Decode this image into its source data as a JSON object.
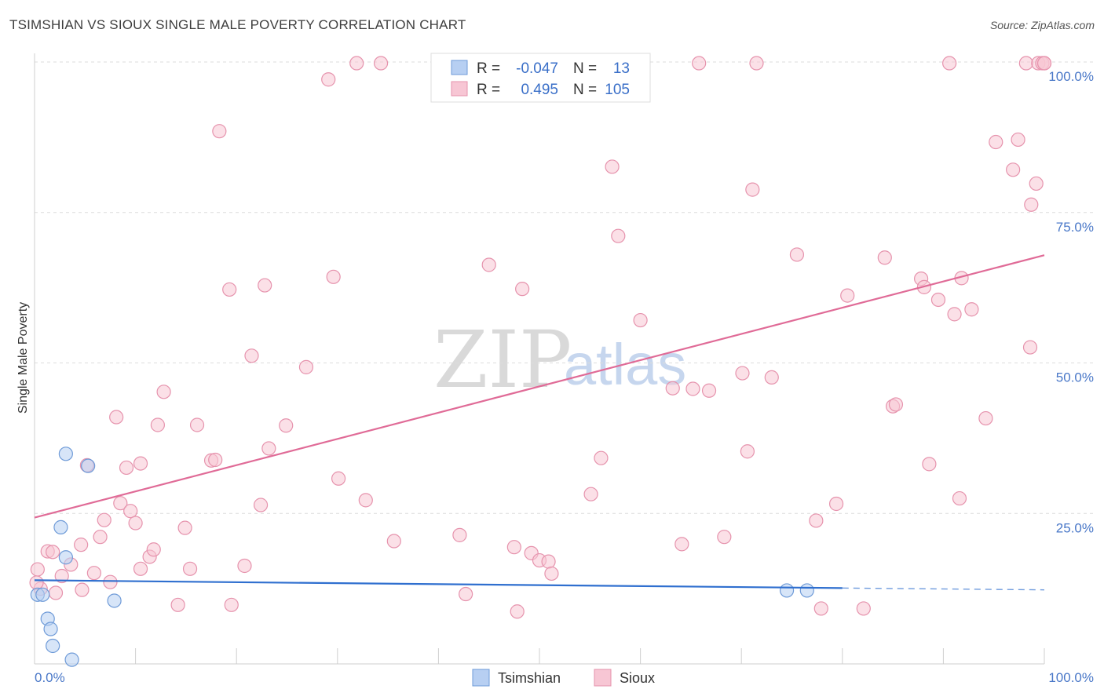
{
  "title": "TSIMSHIAN VS SIOUX SINGLE MALE POVERTY CORRELATION CHART",
  "source": "Source: ZipAtlas.com",
  "colors": {
    "tsimshian_fill": "#b7cff2",
    "tsimshian_stroke": "#6f9bd8",
    "tsimshian_line": "#2f6fcf",
    "sioux_fill": "#f7c6d4",
    "sioux_stroke": "#e693ad",
    "sioux_line": "#e06b97",
    "grid": "#dcdcdc",
    "tick_text": "#4a78c8"
  },
  "watermark": {
    "zip": "ZIP",
    "atlas": "atlas"
  },
  "legend": {
    "r_label": "R =",
    "n_label": "N =",
    "rows": [
      {
        "series": "Tsimshian",
        "r": "-0.047",
        "n": "13"
      },
      {
        "series": "Sioux",
        "r": "0.495",
        "n": "105"
      }
    ]
  },
  "bottom_legend": [
    "Tsimshian",
    "Sioux"
  ],
  "chart_data": {
    "type": "scatter",
    "title": "TSIMSHIAN VS SIOUX SINGLE MALE POVERTY CORRELATION CHART",
    "xlabel": "",
    "ylabel": "Single Male Poverty",
    "xlim": [
      0,
      100
    ],
    "ylim": [
      0,
      100
    ],
    "x_tick_labels": [
      "0.0%",
      "100.0%"
    ],
    "y_ticks": [
      25,
      50,
      75,
      100
    ],
    "y_tick_labels": [
      "25.0%",
      "50.0%",
      "75.0%",
      "100.0%"
    ],
    "series": [
      {
        "name": "Tsimshian",
        "r": -0.047,
        "n": 13,
        "points": [
          [
            0.3,
            11.5
          ],
          [
            0.8,
            11.5
          ],
          [
            1.3,
            7.5
          ],
          [
            1.6,
            5.8
          ],
          [
            1.8,
            3.0
          ],
          [
            2.6,
            22.7
          ],
          [
            3.1,
            17.7
          ],
          [
            3.7,
            0.7
          ],
          [
            3.1,
            34.9
          ],
          [
            5.3,
            32.9
          ],
          [
            7.9,
            10.5
          ],
          [
            74.5,
            12.2
          ],
          [
            76.5,
            12.2
          ]
        ],
        "trend": {
          "x1": 0,
          "y1": 13.9,
          "x2": 80,
          "y2": 12.6,
          "dash_to_x": 100,
          "dash_to_y": 12.3
        }
      },
      {
        "name": "Sioux",
        "r": 0.495,
        "n": 105,
        "points": [
          [
            0.3,
            15.7
          ],
          [
            0.6,
            12.5
          ],
          [
            1.3,
            18.7
          ],
          [
            1.8,
            18.6
          ],
          [
            2.1,
            11.8
          ],
          [
            2.7,
            14.6
          ],
          [
            3.6,
            16.5
          ],
          [
            4.6,
            19.8
          ],
          [
            4.7,
            12.3
          ],
          [
            5.2,
            33.0
          ],
          [
            5.9,
            15.1
          ],
          [
            6.5,
            21.1
          ],
          [
            6.9,
            23.9
          ],
          [
            7.5,
            13.6
          ],
          [
            8.1,
            41.0
          ],
          [
            8.5,
            26.7
          ],
          [
            9.1,
            32.6
          ],
          [
            9.5,
            25.4
          ],
          [
            10.0,
            23.4
          ],
          [
            10.5,
            33.3
          ],
          [
            10.5,
            15.8
          ],
          [
            11.4,
            17.8
          ],
          [
            11.8,
            19.0
          ],
          [
            12.2,
            39.7
          ],
          [
            12.8,
            45.2
          ],
          [
            14.2,
            9.8
          ],
          [
            14.9,
            22.6
          ],
          [
            15.4,
            15.8
          ],
          [
            16.1,
            39.7
          ],
          [
            17.5,
            33.8
          ],
          [
            17.9,
            33.9
          ],
          [
            18.3,
            88.5
          ],
          [
            19.3,
            62.2
          ],
          [
            19.5,
            9.8
          ],
          [
            20.8,
            16.3
          ],
          [
            21.5,
            51.2
          ],
          [
            22.4,
            26.4
          ],
          [
            22.8,
            62.9
          ],
          [
            23.2,
            35.8
          ],
          [
            24.9,
            39.6
          ],
          [
            26.9,
            49.3
          ],
          [
            29.1,
            97.1
          ],
          [
            29.6,
            64.3
          ],
          [
            30.1,
            30.8
          ],
          [
            31.9,
            99.8
          ],
          [
            32.8,
            27.2
          ],
          [
            34.3,
            99.8
          ],
          [
            35.6,
            20.4
          ],
          [
            42.1,
            21.4
          ],
          [
            42.7,
            11.6
          ],
          [
            45.0,
            66.3
          ],
          [
            47.5,
            19.4
          ],
          [
            47.8,
            8.7
          ],
          [
            48.3,
            62.3
          ],
          [
            49.2,
            18.4
          ],
          [
            50.0,
            17.2
          ],
          [
            50.9,
            17.0
          ],
          [
            51.2,
            15.0
          ],
          [
            55.1,
            28.2
          ],
          [
            56.1,
            34.2
          ],
          [
            57.2,
            82.6
          ],
          [
            57.8,
            71.1
          ],
          [
            60.0,
            57.1
          ],
          [
            63.2,
            45.8
          ],
          [
            64.1,
            19.9
          ],
          [
            65.2,
            45.7
          ],
          [
            65.8,
            99.8
          ],
          [
            66.8,
            45.4
          ],
          [
            68.3,
            21.1
          ],
          [
            70.1,
            48.3
          ],
          [
            70.6,
            35.3
          ],
          [
            71.1,
            78.8
          ],
          [
            71.5,
            99.8
          ],
          [
            73.0,
            47.6
          ],
          [
            75.5,
            68.0
          ],
          [
            77.4,
            23.8
          ],
          [
            77.9,
            9.2
          ],
          [
            79.4,
            26.6
          ],
          [
            80.5,
            61.2
          ],
          [
            82.1,
            9.2
          ],
          [
            84.2,
            67.5
          ],
          [
            85.0,
            42.8
          ],
          [
            85.3,
            43.1
          ],
          [
            87.8,
            64.0
          ],
          [
            88.1,
            62.6
          ],
          [
            88.6,
            33.2
          ],
          [
            89.5,
            60.5
          ],
          [
            90.6,
            99.8
          ],
          [
            91.1,
            58.1
          ],
          [
            91.6,
            27.5
          ],
          [
            91.8,
            64.1
          ],
          [
            92.8,
            58.9
          ],
          [
            94.2,
            40.8
          ],
          [
            95.2,
            86.7
          ],
          [
            96.9,
            82.1
          ],
          [
            97.4,
            87.1
          ],
          [
            98.2,
            99.8
          ],
          [
            98.6,
            52.6
          ],
          [
            98.7,
            76.3
          ],
          [
            99.2,
            79.8
          ],
          [
            99.4,
            99.8
          ],
          [
            99.8,
            99.8
          ],
          [
            100.0,
            99.8
          ],
          [
            100.0,
            99.8
          ],
          [
            0.2,
            13.5
          ]
        ],
        "trend": {
          "x1": 0,
          "y1": 24.3,
          "x2": 100,
          "y2": 67.9
        }
      }
    ],
    "grid": true,
    "legend_position": "top-center"
  }
}
